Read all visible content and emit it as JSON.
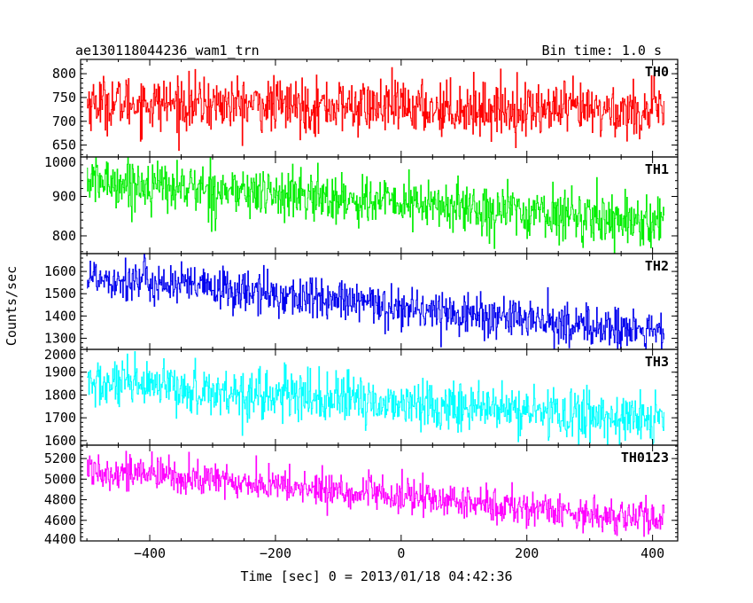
{
  "chart_data": {
    "type": "line",
    "title_left": "ae130118044236_wam1_trn",
    "title_right": "Bin time: 1.0 s",
    "xlabel": "Time [sec] 0 = 2013/01/18 04:42:36",
    "ylabel": "Counts/sec",
    "xlim": [
      -510,
      440
    ],
    "x_ticks": [
      -400,
      -200,
      0,
      200,
      400
    ],
    "x_tick_labels": [
      "−400",
      "−200",
      "0",
      "200",
      "400"
    ],
    "x_range": [
      -500,
      418
    ],
    "panels": [
      {
        "name": "TH0",
        "color": "#ff0000",
        "ylim": [
          625,
          830
        ],
        "y_ticks": [
          650,
          700,
          750,
          800
        ],
        "y_tick_labels": [
          "650",
          "700",
          "750",
          "800"
        ],
        "trend_start": 740,
        "trend_end": 720,
        "noise": 28
      },
      {
        "name": "TH1",
        "color": "#00ee00",
        "ylim": [
          755,
          1000
        ],
        "y_ticks": [
          800,
          900,
          1000
        ],
        "y_tick_labels": [
          "800",
          "900",
          "1000"
        ],
        "trend_start": 940,
        "trend_end": 835,
        "noise": 32
      },
      {
        "name": "TH2",
        "color": "#0000ee",
        "ylim": [
          1250,
          1680
        ],
        "y_ticks": [
          1300,
          1400,
          1500,
          1600
        ],
        "y_tick_labels": [
          "1300",
          "1400",
          "1500",
          "1600"
        ],
        "trend_start": 1580,
        "trend_end": 1320,
        "noise": 48
      },
      {
        "name": "TH3",
        "color": "#00ffff",
        "ylim": [
          1580,
          2000
        ],
        "y_ticks": [
          1600,
          1700,
          1800,
          1900,
          2000
        ],
        "y_tick_labels": [
          "1600",
          "1700",
          "1800",
          "1900",
          "2000"
        ],
        "trend_start": 1850,
        "trend_end": 1690,
        "noise": 55
      },
      {
        "name": "TH0123",
        "color": "#ff00ff",
        "ylim": [
          4400,
          5330
        ],
        "y_ticks": [
          4400,
          4600,
          4800,
          5000,
          5200
        ],
        "y_tick_labels": [
          "4400",
          "4600",
          "4800",
          "5000",
          "5200"
        ],
        "trend_start": 5100,
        "trend_end": 4600,
        "noise": 85
      }
    ]
  }
}
